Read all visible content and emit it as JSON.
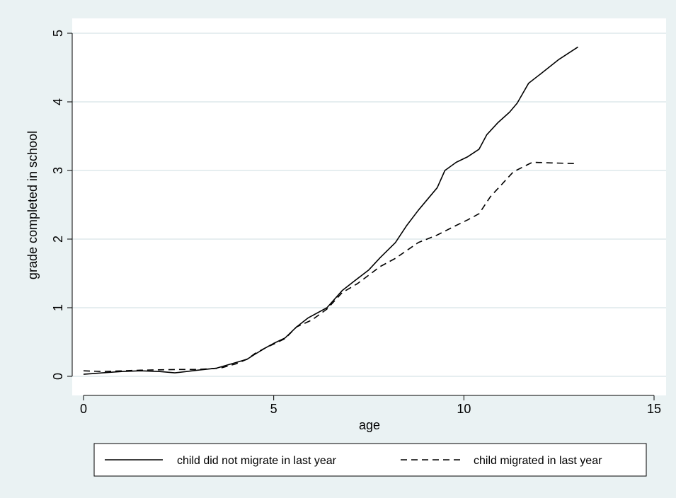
{
  "chart_data": {
    "type": "line",
    "title": "",
    "xlabel": "age",
    "ylabel": "grade completed in school",
    "xlim": [
      0,
      15
    ],
    "ylim": [
      0,
      5
    ],
    "x_ticks": [
      0,
      5,
      10,
      15
    ],
    "y_ticks": [
      0,
      1,
      2,
      3,
      4,
      5
    ],
    "grid": true,
    "legend_position": "bottom",
    "series": [
      {
        "name": "child did not migrate in last year",
        "style": "solid",
        "color": "#000000",
        "points": [
          [
            0,
            0.03
          ],
          [
            0.5,
            0.05
          ],
          [
            1,
            0.07
          ],
          [
            1.5,
            0.08
          ],
          [
            2,
            0.07
          ],
          [
            2.4,
            0.05
          ],
          [
            3,
            0.09
          ],
          [
            3.5,
            0.12
          ],
          [
            4,
            0.2
          ],
          [
            4.3,
            0.25
          ],
          [
            4.5,
            0.32
          ],
          [
            4.8,
            0.42
          ],
          [
            5,
            0.48
          ],
          [
            5.3,
            0.56
          ],
          [
            5.6,
            0.72
          ],
          [
            5.9,
            0.85
          ],
          [
            6.4,
            1.0
          ],
          [
            6.8,
            1.25
          ],
          [
            7.1,
            1.38
          ],
          [
            7.5,
            1.55
          ],
          [
            7.8,
            1.73
          ],
          [
            8.2,
            1.95
          ],
          [
            8.5,
            2.2
          ],
          [
            8.8,
            2.42
          ],
          [
            9.3,
            2.75
          ],
          [
            9.5,
            3.0
          ],
          [
            9.8,
            3.12
          ],
          [
            10.1,
            3.2
          ],
          [
            10.4,
            3.31
          ],
          [
            10.6,
            3.52
          ],
          [
            10.9,
            3.7
          ],
          [
            11.2,
            3.85
          ],
          [
            11.4,
            3.98
          ],
          [
            11.7,
            4.27
          ],
          [
            12,
            4.4
          ],
          [
            12.5,
            4.62
          ],
          [
            13,
            4.8
          ]
        ]
      },
      {
        "name": "child migrated in last year",
        "style": "dashed",
        "color": "#000000",
        "points": [
          [
            0,
            0.08
          ],
          [
            0.5,
            0.07
          ],
          [
            1.5,
            0.09
          ],
          [
            2.5,
            0.1
          ],
          [
            3,
            0.1
          ],
          [
            3.6,
            0.12
          ],
          [
            4,
            0.18
          ],
          [
            4.3,
            0.25
          ],
          [
            4.5,
            0.33
          ],
          [
            4.8,
            0.42
          ],
          [
            5,
            0.47
          ],
          [
            5.3,
            0.55
          ],
          [
            5.6,
            0.72
          ],
          [
            6,
            0.82
          ],
          [
            6.4,
            0.98
          ],
          [
            6.8,
            1.22
          ],
          [
            7.2,
            1.35
          ],
          [
            7.8,
            1.6
          ],
          [
            8.2,
            1.72
          ],
          [
            8.8,
            1.95
          ],
          [
            9.3,
            2.06
          ],
          [
            9.8,
            2.2
          ],
          [
            10.1,
            2.28
          ],
          [
            10.4,
            2.37
          ],
          [
            10.7,
            2.62
          ],
          [
            11,
            2.8
          ],
          [
            11.3,
            2.98
          ],
          [
            11.8,
            3.12
          ],
          [
            12.3,
            3.11
          ],
          [
            13,
            3.1
          ]
        ]
      }
    ]
  }
}
